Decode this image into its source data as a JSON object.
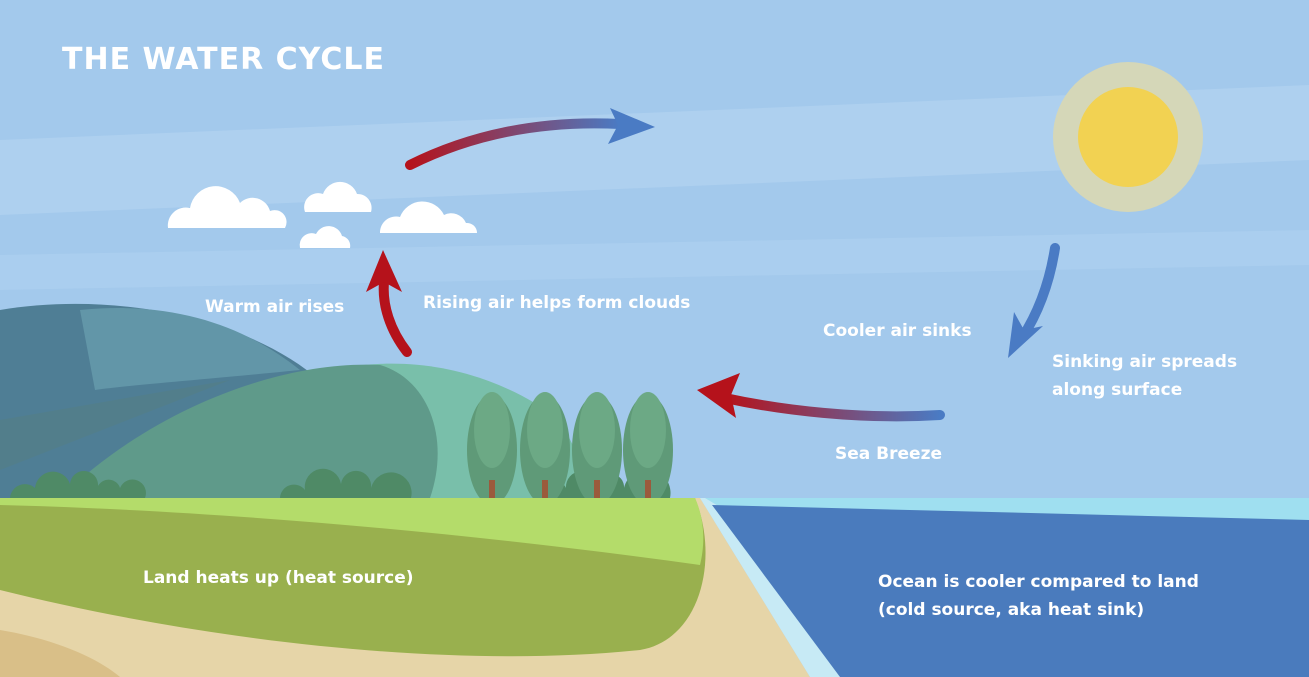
{
  "title": "THE WATER CYCLE",
  "labels": {
    "warm_air": "Warm air rises",
    "rising_air": "Rising air helps form clouds",
    "cooler_air": "Cooler air sinks",
    "sinking_air": [
      "Sinking air spreads",
      "along surface"
    ],
    "sea_breeze": "Sea Breeze",
    "land": "Land heats up (heat source)",
    "ocean": [
      "Ocean is cooler compared to land",
      "(cold source, aka heat sink)"
    ]
  }
}
